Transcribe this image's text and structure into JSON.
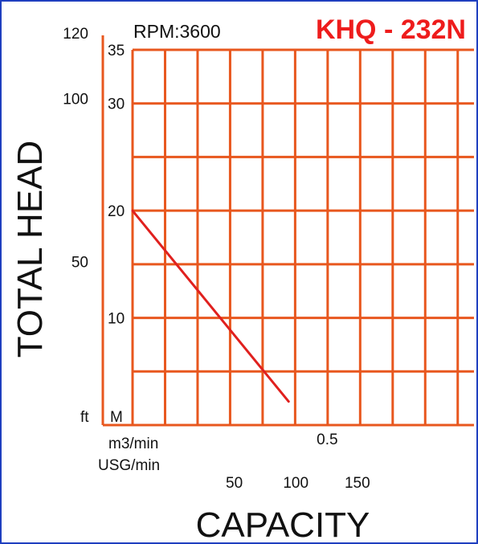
{
  "chart_data": {
    "type": "line",
    "title": "KHQ - 232N",
    "subtitle": "RPM:3600",
    "xlabel": "CAPACITY",
    "ylabel": "TOTAL HEAD",
    "x_unit_primary": "m3/min",
    "x_unit_secondary": "USG/min",
    "y_unit_primary": "M",
    "y_unit_secondary": "ft",
    "xlim": [
      0,
      1.05
    ],
    "ylim": [
      0,
      35
    ],
    "grid": true,
    "x_ticks_primary": [
      {
        "value": 0.5,
        "label": "0.5"
      }
    ],
    "x_ticks_secondary": [
      {
        "value": 50,
        "label": "50"
      },
      {
        "value": 100,
        "label": "100"
      },
      {
        "value": 150,
        "label": "150"
      }
    ],
    "y_ticks_primary": [
      {
        "value": 10,
        "label": "10"
      },
      {
        "value": 20,
        "label": "20"
      },
      {
        "value": 30,
        "label": "30"
      },
      {
        "value": 35,
        "label": "35"
      }
    ],
    "y_ticks_secondary": [
      {
        "value": 50,
        "label": "50"
      },
      {
        "value": 100,
        "label": "100"
      },
      {
        "value": 120,
        "label": "120"
      }
    ],
    "series": [
      {
        "x": [
          0.0,
          0.48
        ],
        "y": [
          20.0,
          2.2
        ]
      }
    ],
    "colors": {
      "grid": "#e8571e",
      "curve": "#e0201e",
      "title": "#ee1c1c",
      "frame": "#1f3fbf"
    }
  }
}
